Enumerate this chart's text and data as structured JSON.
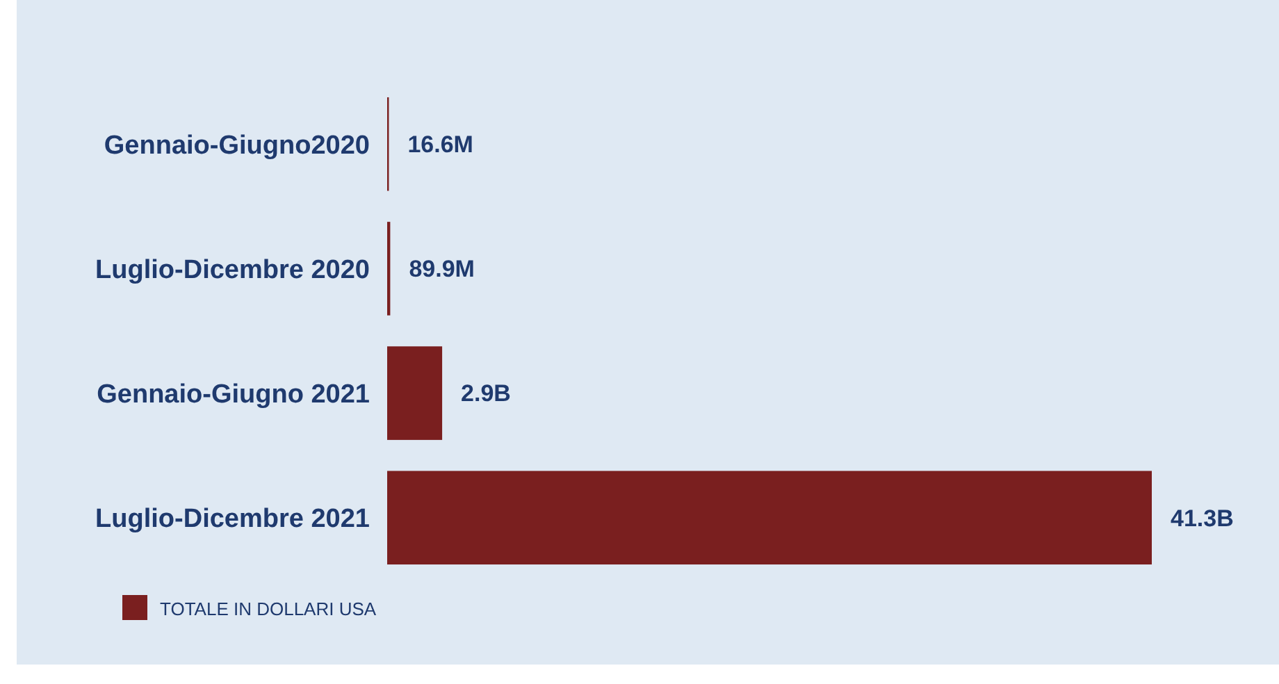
{
  "chart_data": {
    "type": "bar",
    "orientation": "horizontal",
    "categories": [
      "Gennaio-Giugno2020",
      "Luglio-Dicembre 2020",
      "Gennaio-Giugno 2021",
      "Luglio-Dicembre 2021"
    ],
    "series": [
      {
        "name": "TOTALE IN DOLLARI USA",
        "color": "#7a1f1f",
        "values": [
          16600000,
          89900000,
          2900000000,
          41300000000
        ],
        "value_labels": [
          "16.6M",
          "89.9M",
          "2.9B",
          "41.3B"
        ]
      }
    ],
    "legend": "bottom left"
  }
}
